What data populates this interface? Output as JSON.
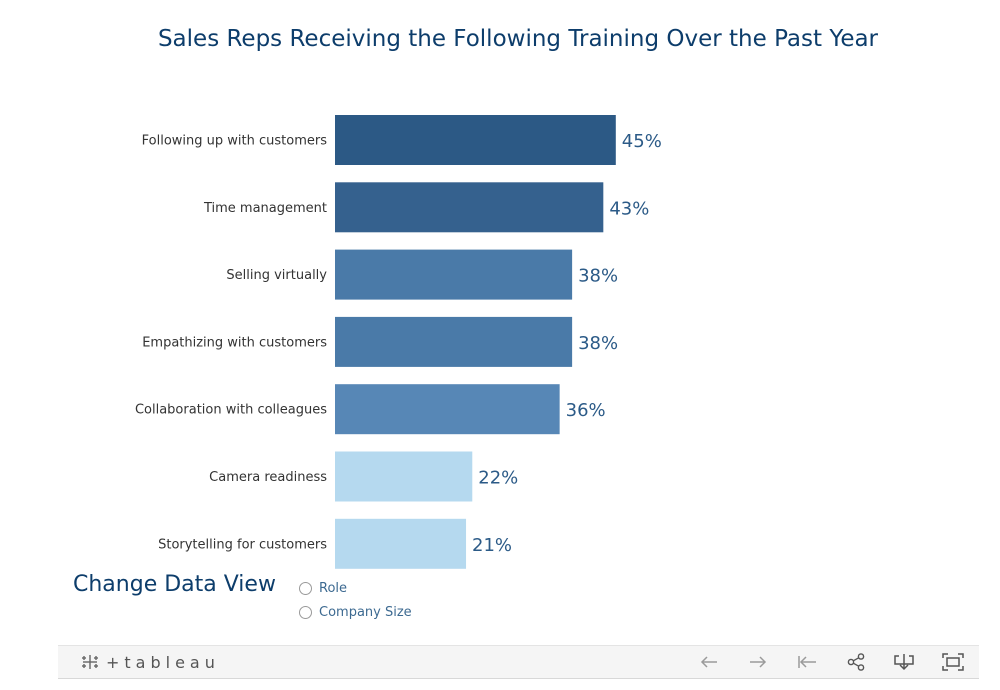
{
  "chart_data": {
    "type": "bar",
    "orientation": "horizontal",
    "title": "Sales Reps Receiving the Following Training Over the Past Year",
    "categories": [
      "Following up with customers",
      "Time management",
      "Selling virtually",
      "Empathizing with customers",
      "Collaboration with colleagues",
      "Camera readiness",
      "Storytelling for customers"
    ],
    "values": [
      45,
      43,
      38,
      38,
      36,
      22,
      21
    ],
    "value_labels": [
      "45%",
      "43%",
      "38%",
      "38%",
      "36%",
      "22%",
      "21%"
    ],
    "colors": [
      "#2c5985",
      "#35618e",
      "#4a7aa8",
      "#4a7aa8",
      "#5787b6",
      "#b5d9ef",
      "#b5d9ef"
    ],
    "xlim": [
      0,
      100
    ],
    "grid": false,
    "xlabel": "",
    "ylabel": ""
  },
  "data_view": {
    "title": "Change Data View",
    "options": [
      "Role",
      "Company Size"
    ]
  },
  "toolbar": {
    "logo_text": "tableau",
    "icons": [
      "undo-icon",
      "redo-icon",
      "revert-icon",
      "share-icon",
      "download-icon",
      "fullscreen-icon"
    ]
  }
}
